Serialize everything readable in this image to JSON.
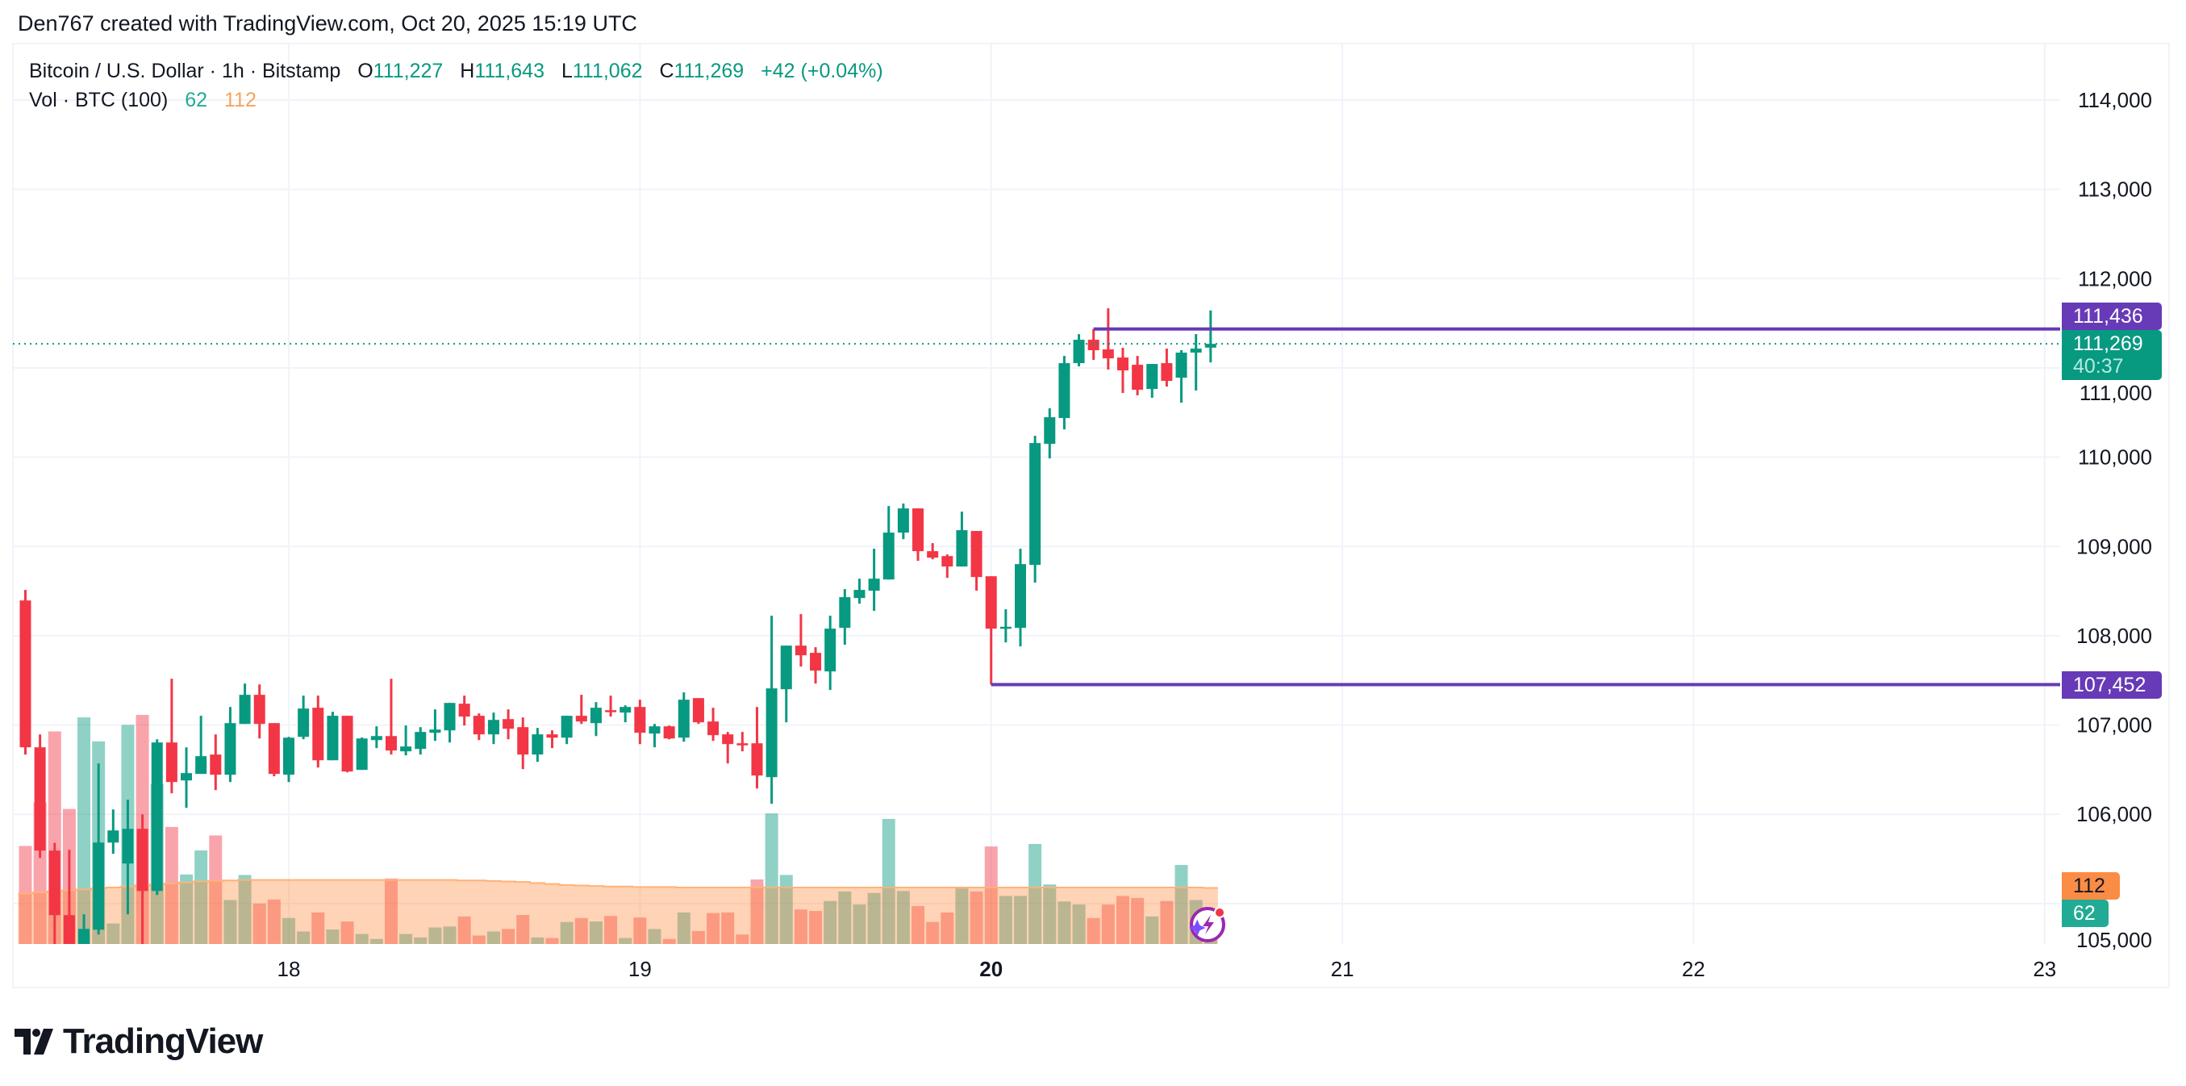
{
  "credit": "Den767 created with TradingView.com, Oct 20, 2025 15:19 UTC",
  "legend": {
    "symbol": "Bitcoin / U.S. Dollar · 1h · Bitstamp",
    "o_label": "O",
    "o": "111,227",
    "h_label": "H",
    "h": "111,643",
    "l_label": "L",
    "l": "111,062",
    "c_label": "C",
    "c": "111,269",
    "change": "+42 (+0.04%)",
    "vol_title": "Vol · BTC (100)",
    "vol_value": "62",
    "vol_ma": "112"
  },
  "badges": {
    "resistance": "111,436",
    "last_price": "111,269",
    "countdown": "40:37",
    "support": "107,452",
    "vol_ma": "112",
    "vol": "62"
  },
  "logo": "TradingView",
  "colors": {
    "up": "#089981",
    "down": "#f23645",
    "level_line": "#673ab7",
    "vol_up": "rgba(8,153,129,0.45)",
    "vol_down": "rgba(242,54,69,0.45)",
    "vol_ma_fill": "rgba(255,140,60,0.38)",
    "vol_ma_line": "#ffb27a"
  },
  "chart_data": {
    "type": "candlestick",
    "interval": "1h",
    "ylim": [
      104544,
      114800
    ],
    "y_ticks": [
      {
        "value": 114000,
        "label": "114,000"
      },
      {
        "value": 113000,
        "label": "113,000"
      },
      {
        "value": 112000,
        "label": "112,000"
      },
      {
        "value": 111000,
        "label": "111,000"
      },
      {
        "value": 110000,
        "label": "110,000"
      },
      {
        "value": 109000,
        "label": "109,000"
      },
      {
        "value": 108000,
        "label": "108,000"
      },
      {
        "value": 107000,
        "label": "107,000"
      },
      {
        "value": 106000,
        "label": "106,000"
      },
      {
        "value": 105000,
        "label": "105,000"
      }
    ],
    "x_ticks": [
      {
        "day": 18,
        "label": "18",
        "bold": false
      },
      {
        "day": 19,
        "label": "19",
        "bold": false
      },
      {
        "day": 20,
        "label": "20",
        "bold": true
      },
      {
        "day": 21,
        "label": "21",
        "bold": false
      },
      {
        "day": 22,
        "label": "22",
        "bold": false
      },
      {
        "day": 23,
        "label": "23",
        "bold": false
      }
    ],
    "grid": true,
    "horizontal_levels": [
      {
        "price": 111436,
        "from": "10-20 07:00"
      },
      {
        "price": 107452,
        "from": "10-20 00:00"
      }
    ],
    "last_price": 111269,
    "columns": [
      "time",
      "open",
      "high",
      "low",
      "close",
      "volume",
      "vol_ma"
    ],
    "candles": [
      [
        "10-17 06:00",
        108395,
        108513,
        106668,
        106750,
        196,
        101
      ],
      [
        "10-17 07:00",
        106750,
        106894,
        105510,
        105593,
        283,
        103
      ],
      [
        "10-17 08:00",
        105593,
        105680,
        104300,
        104870,
        425,
        105
      ],
      [
        "10-17 09:00",
        104870,
        105602,
        104200,
        104450,
        270,
        107
      ],
      [
        "10-17 10:00",
        104450,
        104880,
        104300,
        104716,
        453,
        109
      ],
      [
        "10-17 11:00",
        104707,
        106569,
        104653,
        105683,
        405,
        111
      ],
      [
        "10-17 12:00",
        105683,
        106054,
        105557,
        105819,
        41,
        113
      ],
      [
        "10-17 13:00",
        105448,
        106162,
        104879,
        105837,
        438,
        115
      ],
      [
        "10-17 14:00",
        105837,
        106000,
        104300,
        105141,
        458,
        117
      ],
      [
        "10-17 15:00",
        105141,
        106840,
        105096,
        106804,
        320,
        119
      ],
      [
        "10-17 16:00",
        106804,
        107518,
        106235,
        106361,
        234,
        121
      ],
      [
        "10-17 17:00",
        106379,
        106750,
        106072,
        106461,
        139,
        123
      ],
      [
        "10-17 18:00",
        106452,
        107103,
        106452,
        106651,
        187,
        125
      ],
      [
        "10-17 19:00",
        106669,
        106894,
        106271,
        106443,
        217,
        126
      ],
      [
        "10-17 20:00",
        106443,
        107202,
        106361,
        107021,
        88,
        127
      ],
      [
        "10-17 21:00",
        107012,
        107464,
        107012,
        107338,
        138,
        128
      ],
      [
        "10-17 22:00",
        107338,
        107455,
        106849,
        107012,
        81,
        128
      ],
      [
        "10-17 23:00",
        107021,
        107021,
        106425,
        106452,
        89,
        128
      ],
      [
        "10-18 00:00",
        106443,
        106867,
        106361,
        106858,
        52,
        128
      ],
      [
        "10-18 01:00",
        106867,
        107329,
        106840,
        107184,
        25,
        128
      ],
      [
        "10-18 02:00",
        107193,
        107329,
        106524,
        106605,
        63,
        128
      ],
      [
        "10-18 03:00",
        106605,
        107148,
        106605,
        107103,
        29,
        128
      ],
      [
        "10-18 04:00",
        107103,
        107103,
        106470,
        106479,
        45,
        128
      ],
      [
        "10-18 05:00",
        106497,
        106860,
        106497,
        106849,
        20,
        128
      ],
      [
        "10-18 06:00",
        106831,
        106985,
        106741,
        106876,
        10,
        128
      ],
      [
        "10-18 07:00",
        106876,
        107518,
        106669,
        106714,
        131,
        128
      ],
      [
        "10-18 08:00",
        106705,
        106994,
        106660,
        106759,
        20,
        128
      ],
      [
        "10-18 09:00",
        106732,
        106976,
        106669,
        106922,
        13,
        128
      ],
      [
        "10-18 10:00",
        106913,
        107175,
        106822,
        106949,
        33,
        128
      ],
      [
        "10-18 11:00",
        106940,
        107247,
        106804,
        107247,
        35,
        128
      ],
      [
        "10-18 12:00",
        107238,
        107329,
        106994,
        107094,
        55,
        127
      ],
      [
        "10-18 13:00",
        107103,
        107130,
        106831,
        106895,
        17,
        127
      ],
      [
        "10-18 14:00",
        106895,
        107139,
        106786,
        107057,
        25,
        126
      ],
      [
        "10-18 15:00",
        107066,
        107175,
        106840,
        106958,
        30,
        125
      ],
      [
        "10-18 16:00",
        106976,
        107084,
        106506,
        106669,
        58,
        124
      ],
      [
        "10-18 17:00",
        106669,
        106967,
        106587,
        106895,
        13,
        122
      ],
      [
        "10-18 18:00",
        106895,
        106940,
        106741,
        106858,
        12,
        120
      ],
      [
        "10-18 19:00",
        106858,
        107103,
        106786,
        107103,
        44,
        118
      ],
      [
        "10-18 20:00",
        107103,
        107338,
        107012,
        107039,
        52,
        117
      ],
      [
        "10-18 21:00",
        107021,
        107256,
        106876,
        107193,
        45,
        116
      ],
      [
        "10-18 22:00",
        107166,
        107329,
        107094,
        107148,
        56,
        115
      ],
      [
        "10-18 23:00",
        107139,
        107220,
        107030,
        107202,
        12,
        115
      ],
      [
        "10-19 00:00",
        107202,
        107283,
        106786,
        106913,
        53,
        114
      ],
      [
        "10-19 01:00",
        106904,
        107012,
        106750,
        106985,
        30,
        114
      ],
      [
        "10-19 02:00",
        106985,
        106994,
        106840,
        106849,
        10,
        114
      ],
      [
        "10-19 03:00",
        106858,
        107365,
        106813,
        107283,
        63,
        113
      ],
      [
        "10-19 04:00",
        107301,
        107301,
        107012,
        107030,
        26,
        113
      ],
      [
        "10-19 05:00",
        107039,
        107193,
        106822,
        106886,
        62,
        113
      ],
      [
        "10-19 06:00",
        106895,
        106922,
        106569,
        106786,
        63,
        113
      ],
      [
        "10-19 07:00",
        106795,
        106922,
        106705,
        106777,
        19,
        113
      ],
      [
        "10-19 08:00",
        106795,
        107202,
        106289,
        106434,
        129,
        113
      ],
      [
        "10-19 09:00",
        106416,
        108224,
        106117,
        107410,
        261,
        113
      ],
      [
        "10-19 10:00",
        107401,
        107889,
        107030,
        107889,
        138,
        113
      ],
      [
        "10-19 11:00",
        107889,
        108242,
        107655,
        107781,
        69,
        113
      ],
      [
        "10-19 12:00",
        107808,
        107871,
        107464,
        107609,
        66,
        113
      ],
      [
        "10-19 13:00",
        107600,
        108224,
        107392,
        108079,
        86,
        113
      ],
      [
        "10-19 14:00",
        108088,
        108522,
        107898,
        108432,
        105,
        113
      ],
      [
        "10-19 15:00",
        108422,
        108639,
        108359,
        108513,
        79,
        113
      ],
      [
        "10-19 16:00",
        108504,
        108974,
        108278,
        108639,
        102,
        113
      ],
      [
        "10-19 17:00",
        108630,
        109453,
        108630,
        109155,
        250,
        113
      ],
      [
        "10-19 18:00",
        109155,
        109480,
        109082,
        109426,
        106,
        113
      ],
      [
        "10-19 19:00",
        109426,
        109426,
        108838,
        108947,
        76,
        113
      ],
      [
        "10-19 20:00",
        108947,
        109037,
        108856,
        108874,
        44,
        113
      ],
      [
        "10-19 21:00",
        108892,
        108910,
        108648,
        108775,
        63,
        113
      ],
      [
        "10-19 22:00",
        108775,
        109390,
        108775,
        109182,
        111,
        113
      ],
      [
        "10-19 23:00",
        109173,
        109173,
        108504,
        108657,
        105,
        113
      ],
      [
        "10-20 00:00",
        108666,
        108666,
        107452,
        108079,
        195,
        113
      ],
      [
        "10-20 01:00",
        108088,
        108296,
        107925,
        108100,
        96,
        113
      ],
      [
        "10-20 02:00",
        108088,
        108974,
        107880,
        108802,
        96,
        113
      ],
      [
        "10-20 03:00",
        108793,
        110239,
        108594,
        110158,
        200,
        113
      ],
      [
        "10-20 04:00",
        110149,
        110547,
        109986,
        110447,
        119,
        113
      ],
      [
        "10-20 05:00",
        110438,
        111134,
        110311,
        111053,
        85,
        113
      ],
      [
        "10-20 06:00",
        111053,
        111378,
        111017,
        111315,
        79,
        113
      ],
      [
        "10-20 07:00",
        111315,
        111436,
        111089,
        111198,
        52,
        113
      ],
      [
        "10-20 08:00",
        111207,
        111667,
        110981,
        111107,
        79,
        113
      ],
      [
        "10-20 09:00",
        111116,
        111225,
        110719,
        110972,
        96,
        113
      ],
      [
        "10-20 10:00",
        111035,
        111134,
        110692,
        110755,
        92,
        113
      ],
      [
        "10-20 11:00",
        110764,
        111044,
        110665,
        111044,
        55,
        113
      ],
      [
        "10-20 12:00",
        111053,
        111216,
        110791,
        110855,
        86,
        113
      ],
      [
        "10-20 13:00",
        110890,
        111198,
        110610,
        111171,
        158,
        113
      ],
      [
        "10-20 14:00",
        111171,
        111378,
        110746,
        111216,
        88,
        113
      ],
      [
        "10-20 15:00",
        111227,
        111643,
        111062,
        111269,
        62,
        112
      ]
    ]
  }
}
